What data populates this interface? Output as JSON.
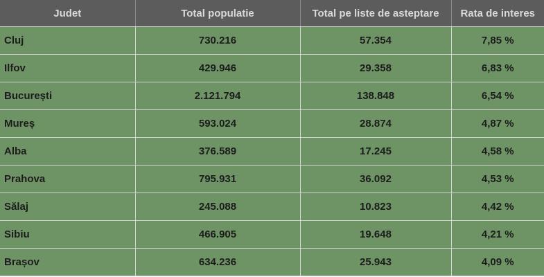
{
  "headers": [
    "Judet",
    "Total populatie",
    "Total pe liste de asteptare",
    "Rata de interes"
  ],
  "rows": [
    [
      "Cluj",
      "730.216",
      "57.354",
      "7,85 %"
    ],
    [
      "Ilfov",
      "429.946",
      "29.358",
      "6,83 %"
    ],
    [
      "București",
      "2.121.794",
      "138.848",
      "6,54 %"
    ],
    [
      "Mureș",
      "593.024",
      "28.874",
      "4,87 %"
    ],
    [
      "Alba",
      "376.589",
      "17.245",
      "4,58 %"
    ],
    [
      "Prahova",
      "795.931",
      "36.092",
      "4,53 %"
    ],
    [
      "Sălaj",
      "245.088",
      "10.823",
      "4,42 %"
    ],
    [
      "Sibiu",
      "466.905",
      "19.648",
      "4,21 %"
    ],
    [
      "Brașov",
      "634.236",
      "25.943",
      "4,09 %"
    ]
  ],
  "colors": {
    "header_bg": "#5c5c5c",
    "header_text": "#d9d9d9",
    "row_bg": "#6e9466",
    "row_text": "#1c1c1c",
    "grid_line": "#d6d6d6"
  }
}
